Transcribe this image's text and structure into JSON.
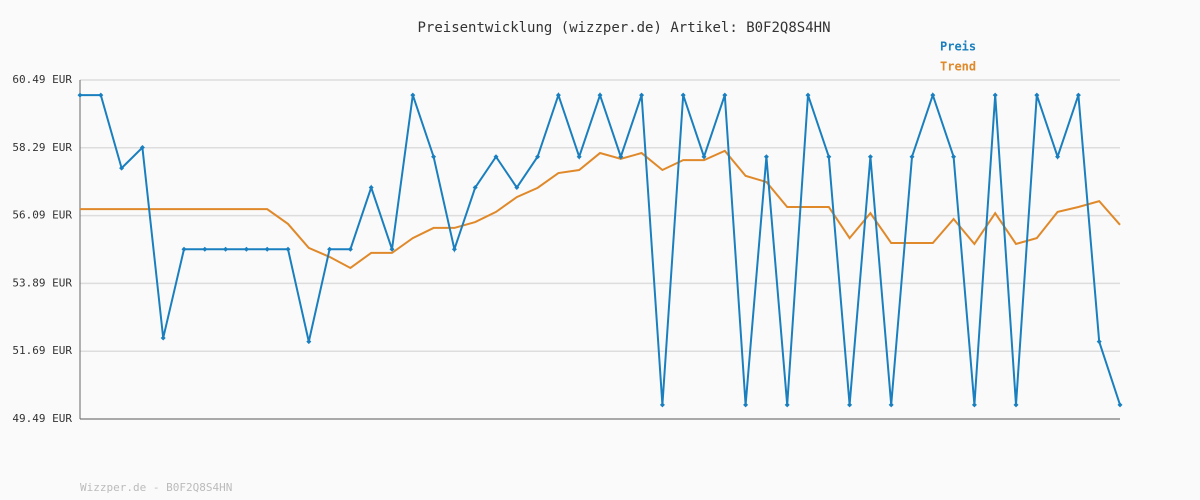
{
  "chart_data": {
    "type": "line",
    "title": "Preisentwicklung (wizzper.de) Artikel: B0F2Q8S4HN",
    "footer": "Wizzper.de - B0F2Q8S4HN",
    "categories": [
      null,
      null,
      null,
      null,
      null,
      null,
      null,
      null,
      null,
      null,
      null,
      null,
      null,
      null,
      null,
      null,
      null,
      null,
      null,
      null,
      null,
      null,
      null,
      null,
      null,
      null,
      null,
      null,
      null,
      null,
      null,
      null,
      null,
      null,
      null,
      null,
      null,
      null,
      null,
      null,
      null,
      null,
      null,
      null,
      null,
      null,
      null,
      null,
      null,
      null,
      null
    ],
    "series": [
      {
        "name": "Preis",
        "color": "#1a7fbf",
        "values": [
          60.0,
          60.0,
          57.63,
          58.3,
          52.12,
          55.0,
          55.0,
          55.0,
          55.0,
          55.0,
          55.0,
          52.0,
          55.0,
          55.0,
          57.0,
          55.0,
          60.0,
          58.0,
          55.0,
          57.0,
          58.0,
          57.0,
          58.0,
          60.0,
          58.0,
          60.0,
          58.0,
          60.0,
          49.95,
          60.0,
          58.0,
          60.0,
          49.95,
          58.0,
          49.95,
          60.0,
          58.0,
          49.95,
          58.0,
          49.95,
          58.0,
          60.0,
          58.0,
          49.95,
          60.0,
          49.95,
          60.0,
          58.0,
          60.0,
          52.0,
          49.95
        ]
      },
      {
        "name": "Trend",
        "color": "#e0892a",
        "values": [
          56.3,
          56.3,
          56.3,
          56.3,
          56.3,
          56.3,
          56.3,
          56.3,
          56.3,
          56.3,
          55.82,
          55.04,
          54.75,
          54.39,
          54.88,
          54.88,
          55.36,
          55.69,
          55.69,
          55.88,
          56.21,
          56.69,
          56.99,
          57.47,
          57.57,
          58.12,
          57.93,
          58.12,
          57.57,
          57.89,
          57.89,
          58.19,
          57.38,
          57.18,
          56.37,
          56.37,
          56.37,
          55.36,
          56.17,
          55.2,
          55.2,
          55.2,
          55.98,
          55.17,
          56.17,
          55.17,
          55.36,
          56.21,
          56.37,
          56.56,
          55.79
        ]
      }
    ],
    "ylim": [
      49.49,
      60.49
    ],
    "yticks": [
      {
        "value": 49.49,
        "label": "49.49 EUR"
      },
      {
        "value": 51.69,
        "label": "51.69 EUR"
      },
      {
        "value": 53.89,
        "label": "53.89 EUR"
      },
      {
        "value": 56.09,
        "label": "56.09 EUR"
      },
      {
        "value": 58.29,
        "label": "58.29 EUR"
      },
      {
        "value": 60.49,
        "label": "60.49 EUR"
      }
    ],
    "grid": true
  }
}
